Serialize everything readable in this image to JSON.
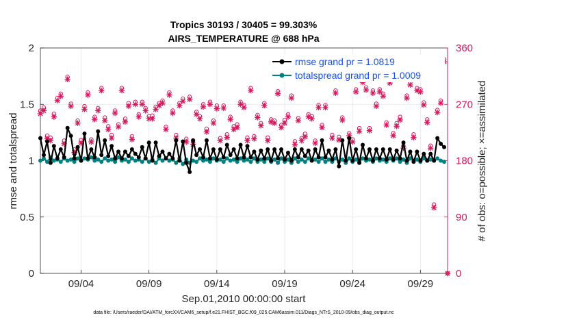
{
  "chart_data": {
    "type": "line",
    "title": "Tropics 30193 / 30405 = 99.303%",
    "subtitle": "AIRS_TEMPERATURE @ 688 hPa",
    "xlabel": "Sep.01,2010 00:00:00 start",
    "ylabel": "rmse and totalspread",
    "ylabel_right": "# of obs: o=possible; ×=assimilated",
    "x_ticks": [
      "09/04",
      "09/09",
      "09/14",
      "09/19",
      "09/24",
      "09/29"
    ],
    "y_ticks": [
      "0",
      "0.5",
      "1",
      "1.5",
      "2"
    ],
    "y_ticks_right": [
      "0",
      "90",
      "180",
      "270",
      "360"
    ],
    "xlim": [
      1,
      31
    ],
    "ylim": [
      0,
      2
    ],
    "ylim_right": [
      0,
      360
    ],
    "grid": true,
    "legend_position": "top-right",
    "footer": "data file: /Users/raeder/DAI/ATM_forcXX/CAM6_setup/f.e21.FHIST_BGC.f09_025.CAM6assim.011/Diags_NTrS_2010-09/obs_diag_output.nc",
    "colors": {
      "rmse": "#000000",
      "spread": "#008080",
      "obs": "#d6175e"
    },
    "series": [
      {
        "name": "rmse grand pr = 1.0819",
        "color": "#000000",
        "x": [
          1.0,
          1.25,
          1.5,
          1.75,
          2.0,
          2.25,
          2.5,
          2.75,
          3.0,
          3.25,
          3.5,
          3.75,
          4.0,
          4.25,
          4.5,
          4.75,
          5.0,
          5.25,
          5.5,
          5.75,
          6.0,
          6.25,
          6.5,
          6.75,
          7.0,
          7.25,
          7.5,
          7.75,
          8.0,
          8.25,
          8.5,
          8.75,
          9.0,
          9.25,
          9.5,
          9.75,
          10.0,
          10.25,
          10.5,
          10.75,
          11.0,
          11.25,
          11.5,
          11.75,
          12.0,
          12.25,
          12.5,
          12.75,
          13.0,
          13.25,
          13.5,
          13.75,
          14.0,
          14.25,
          14.5,
          14.75,
          15.0,
          15.25,
          15.5,
          15.75,
          16.0,
          16.25,
          16.5,
          16.75,
          17.0,
          17.25,
          17.5,
          17.75,
          18.0,
          18.25,
          18.5,
          18.75,
          19.0,
          19.25,
          19.5,
          19.75,
          20.0,
          20.25,
          20.5,
          20.75,
          21.0,
          21.25,
          21.5,
          21.75,
          22.0,
          22.25,
          22.5,
          22.75,
          23.0,
          23.25,
          23.5,
          23.75,
          24.0,
          24.25,
          24.5,
          24.75,
          25.0,
          25.25,
          25.5,
          25.75,
          26.0,
          26.25,
          26.5,
          26.75,
          27.0,
          27.25,
          27.5,
          27.75,
          28.0,
          28.25,
          28.5,
          28.75,
          29.0,
          29.25,
          29.5,
          29.75,
          30.0,
          30.25,
          30.5,
          30.75
        ],
        "values": [
          1.2,
          1.05,
          1.17,
          0.98,
          1.13,
          1.02,
          1.1,
          1.03,
          1.29,
          1.22,
          1.02,
          1.12,
          1.0,
          1.24,
          1.02,
          1.1,
          1.03,
          1.26,
          1.05,
          1.18,
          1.04,
          1.13,
          1.02,
          1.08,
          1.02,
          1.08,
          1.04,
          1.1,
          1.06,
          1.03,
          1.12,
          1.02,
          1.16,
          1.0,
          1.16,
          1.04,
          1.08,
          1.02,
          1.06,
          1.02,
          1.18,
          1.0,
          1.17,
          0.98,
          0.9,
          1.18,
          1.05,
          1.1,
          1.03,
          1.18,
          1.02,
          1.1,
          1.01,
          1.1,
          1.03,
          1.14,
          1.05,
          1.1,
          1.02,
          1.14,
          1.03,
          1.13,
          1.03,
          1.08,
          1.01,
          1.09,
          1.02,
          1.1,
          1.0,
          1.1,
          1.02,
          1.1,
          1.01,
          1.07,
          1.0,
          1.1,
          1.03,
          1.1,
          1.04,
          1.09,
          1.0,
          1.1,
          1.03,
          1.18,
          1.03,
          1.09,
          1.01,
          1.1,
          0.95,
          1.18,
          1.0,
          1.2,
          1.0,
          1.1,
          0.98,
          1.14,
          1.02,
          1.1,
          1.0,
          1.1,
          1.02,
          1.1,
          1.01,
          1.1,
          1.01,
          1.09,
          1.02,
          1.16,
          1.0,
          1.08,
          0.99,
          1.08,
          1.0,
          1.06,
          1.0,
          1.06,
          1.0,
          1.2,
          1.15,
          1.12
        ]
      },
      {
        "name": "totalspread grand pr = 1.0009",
        "color": "#008080",
        "x": [
          1.0,
          1.25,
          1.5,
          1.75,
          2.0,
          2.25,
          2.5,
          2.75,
          3.0,
          3.25,
          3.5,
          3.75,
          4.0,
          4.25,
          4.5,
          4.75,
          5.0,
          5.25,
          5.5,
          5.75,
          6.0,
          6.25,
          6.5,
          6.75,
          7.0,
          7.25,
          7.5,
          7.75,
          8.0,
          8.25,
          8.5,
          8.75,
          9.0,
          9.25,
          9.5,
          9.75,
          10.0,
          10.25,
          10.5,
          10.75,
          11.0,
          11.25,
          11.5,
          11.75,
          12.0,
          12.25,
          12.5,
          12.75,
          13.0,
          13.25,
          13.5,
          13.75,
          14.0,
          14.25,
          14.5,
          14.75,
          15.0,
          15.25,
          15.5,
          15.75,
          16.0,
          16.25,
          16.5,
          16.75,
          17.0,
          17.25,
          17.5,
          17.75,
          18.0,
          18.25,
          18.5,
          18.75,
          19.0,
          19.25,
          19.5,
          19.75,
          20.0,
          20.25,
          20.5,
          20.75,
          21.0,
          21.25,
          21.5,
          21.75,
          22.0,
          22.25,
          22.5,
          22.75,
          23.0,
          23.25,
          23.5,
          23.75,
          24.0,
          24.25,
          24.5,
          24.75,
          25.0,
          25.25,
          25.5,
          25.75,
          26.0,
          26.25,
          26.5,
          26.75,
          27.0,
          27.25,
          27.5,
          27.75,
          28.0,
          28.25,
          28.5,
          28.75,
          29.0,
          29.25,
          29.5,
          29.75,
          30.0,
          30.25,
          30.5,
          30.75
        ],
        "values": [
          1.0,
          1.02,
          0.99,
          1.03,
          1.0,
          1.01,
          0.99,
          1.02,
          1.0,
          1.01,
          0.99,
          1.02,
          1.0,
          1.02,
          1.01,
          1.03,
          1.0,
          1.01,
          0.99,
          1.02,
          1.0,
          1.01,
          0.99,
          1.03,
          1.0,
          1.01,
          0.99,
          1.02,
          1.0,
          1.01,
          0.99,
          1.02,
          0.99,
          1.01,
          0.98,
          1.02,
          1.0,
          1.02,
          1.0,
          1.01,
          0.98,
          1.02,
          0.97,
          1.01,
          0.98,
          1.0,
          0.99,
          1.02,
          1.0,
          1.01,
          0.99,
          1.02,
          1.0,
          1.01,
          0.99,
          1.02,
          1.0,
          1.01,
          0.99,
          1.02,
          1.0,
          1.01,
          0.99,
          1.02,
          0.99,
          1.01,
          0.99,
          1.02,
          0.99,
          1.01,
          0.98,
          1.02,
          0.99,
          1.01,
          0.98,
          1.02,
          0.99,
          1.01,
          0.99,
          1.02,
          1.0,
          1.01,
          0.99,
          1.02,
          0.99,
          1.01,
          0.99,
          1.02,
          0.99,
          1.01,
          0.98,
          1.02,
          0.99,
          1.01,
          0.99,
          1.02,
          1.0,
          1.01,
          0.99,
          1.02,
          1.0,
          1.01,
          0.99,
          1.02,
          1.0,
          1.02,
          0.99,
          1.01,
          0.98,
          1.02,
          1.0,
          1.01,
          0.99,
          1.02,
          1.0,
          1.01,
          1.0,
          1.02,
          1.0,
          0.99
        ]
      },
      {
        "name": "obs assimilated",
        "axis": "right",
        "color": "#d6175e",
        "x": [
          1.0,
          1.25,
          1.5,
          1.75,
          2.0,
          2.25,
          2.5,
          2.75,
          3.0,
          3.25,
          3.5,
          3.75,
          4.0,
          4.25,
          4.5,
          4.75,
          5.0,
          5.25,
          5.5,
          5.75,
          6.0,
          6.25,
          6.5,
          6.75,
          7.0,
          7.25,
          7.5,
          7.75,
          8.0,
          8.25,
          8.5,
          8.75,
          9.0,
          9.25,
          9.5,
          9.75,
          10.0,
          10.25,
          10.5,
          10.75,
          11.0,
          11.25,
          11.5,
          11.75,
          12.0,
          12.25,
          12.5,
          12.75,
          13.0,
          13.25,
          13.5,
          13.75,
          14.0,
          14.25,
          14.5,
          14.75,
          15.0,
          15.25,
          15.5,
          15.75,
          16.0,
          16.25,
          16.5,
          16.75,
          17.0,
          17.25,
          17.5,
          17.75,
          18.0,
          18.25,
          18.5,
          18.75,
          19.0,
          19.25,
          19.5,
          19.75,
          20.0,
          20.25,
          20.5,
          20.75,
          21.0,
          21.25,
          21.5,
          21.75,
          22.0,
          22.25,
          22.5,
          22.75,
          23.0,
          23.25,
          23.5,
          23.75,
          24.0,
          24.25,
          24.5,
          24.75,
          25.0,
          25.25,
          25.5,
          25.75,
          26.0,
          26.25,
          26.5,
          26.75,
          27.0,
          27.25,
          27.5,
          27.75,
          28.0,
          28.25,
          28.5,
          28.75,
          29.0,
          29.25,
          29.5,
          29.75,
          30.0,
          30.25,
          30.5,
          30.75,
          31.0
        ],
        "values": [
          255,
          260,
          215,
          212,
          250,
          276,
          283,
          207,
          310,
          267,
          193,
          240,
          208,
          262,
          285,
          210,
          246,
          260,
          292,
          244,
          230,
          216,
          256,
          234,
          292,
          242,
          267,
          214,
          270,
          250,
          270,
          260,
          247,
          247,
          262,
          268,
          272,
          230,
          285,
          256,
          216,
          268,
          275,
          210,
          278,
          206,
          254,
          247,
          266,
          226,
          270,
          240,
          263,
          212,
          264,
          217,
          246,
          230,
          233,
          270,
          265,
          212,
          292,
          215,
          249,
          236,
          268,
          212,
          242,
          240,
          287,
          233,
          240,
          250,
          280,
          206,
          244,
          212,
          218,
          250,
          247,
          208,
          265,
          233,
          265,
          310,
          216,
          288,
          213,
          245,
          330,
          220,
          210,
          290,
          227,
          305,
          293,
          228,
          288,
          267,
          290,
          283,
          237,
          304,
          220,
          235,
          245,
          200,
          280,
          301,
          217,
          292,
          290,
          269,
          241,
          200,
          105,
          257,
          272,
          338,
          0
        ],
        "possible": [
          260,
          265,
          220,
          217,
          255,
          280,
          287,
          212,
          314,
          271,
          198,
          244,
          213,
          267,
          289,
          214,
          250,
          264,
          296,
          249,
          235,
          221,
          260,
          238,
          296,
          247,
          272,
          219,
          274,
          254,
          274,
          264,
          251,
          252,
          266,
          272,
          276,
          234,
          289,
          260,
          221,
          272,
          279,
          215,
          282,
          211,
          258,
          251,
          270,
          231,
          274,
          244,
          268,
          216,
          268,
          222,
          250,
          235,
          238,
          274,
          269,
          217,
          296,
          219,
          253,
          240,
          272,
          217,
          246,
          244,
          291,
          237,
          245,
          254,
          284,
          211,
          248,
          216,
          223,
          254,
          251,
          212,
          269,
          237,
          269,
          314,
          221,
          292,
          218,
          249,
          335,
          224,
          214,
          294,
          232,
          309,
          297,
          232,
          292,
          271,
          294,
          287,
          241,
          308,
          224,
          240,
          250,
          204,
          284,
          305,
          222,
          296,
          294,
          273,
          246,
          204,
          110,
          261,
          276,
          342,
          0
        ]
      }
    ]
  }
}
